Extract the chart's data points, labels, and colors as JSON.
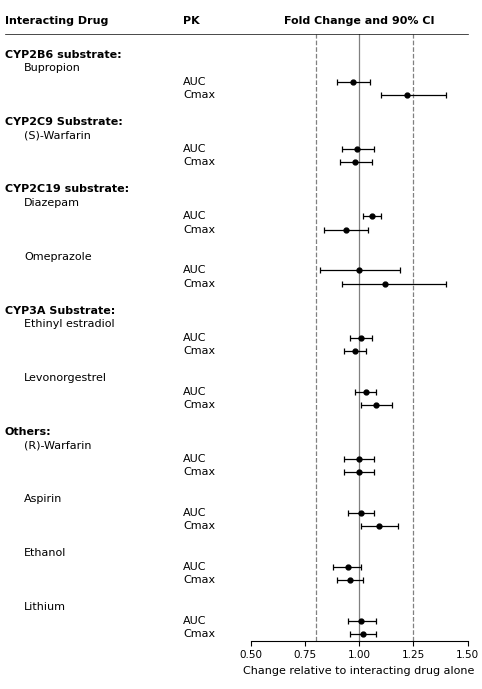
{
  "xlabel": "Change relative to interacting drug alone",
  "col1_header": "Interacting Drug",
  "col2_header": "PK",
  "col3_header": "Fold Change and 90% CI",
  "xlim": [
    0.5,
    1.5
  ],
  "xticks": [
    0.5,
    0.75,
    1.0,
    1.25,
    1.5
  ],
  "xticklabels": [
    "0.50",
    "0.75",
    "1.00",
    "1.25",
    "1.50"
  ],
  "ref_line": 1.0,
  "dashed_lines": [
    0.8,
    1.25
  ],
  "items": [
    {
      "type": "header_spacer"
    },
    {
      "type": "group",
      "text": "CYP2B6 substrate:"
    },
    {
      "type": "drug",
      "text": "Bupropion"
    },
    {
      "type": "pk",
      "pk": "AUC",
      "mean": 0.97,
      "lo": 0.9,
      "hi": 1.05
    },
    {
      "type": "pk",
      "pk": "Cmax",
      "mean": 1.22,
      "lo": 1.1,
      "hi": 1.4
    },
    {
      "type": "spacer"
    },
    {
      "type": "group",
      "text": "CYP2C9 Substrate:"
    },
    {
      "type": "drug",
      "text": "(S)-Warfarin"
    },
    {
      "type": "pk",
      "pk": "AUC",
      "mean": 0.99,
      "lo": 0.92,
      "hi": 1.07
    },
    {
      "type": "pk",
      "pk": "Cmax",
      "mean": 0.98,
      "lo": 0.91,
      "hi": 1.06
    },
    {
      "type": "spacer"
    },
    {
      "type": "group",
      "text": "CYP2C19 substrate:"
    },
    {
      "type": "drug",
      "text": "Diazepam"
    },
    {
      "type": "pk",
      "pk": "AUC",
      "mean": 1.06,
      "lo": 1.02,
      "hi": 1.1
    },
    {
      "type": "pk",
      "pk": "Cmax",
      "mean": 0.94,
      "lo": 0.84,
      "hi": 1.04
    },
    {
      "type": "spacer"
    },
    {
      "type": "drug",
      "text": "Omeprazole"
    },
    {
      "type": "pk",
      "pk": "AUC",
      "mean": 1.0,
      "lo": 0.82,
      "hi": 1.19
    },
    {
      "type": "pk",
      "pk": "Cmax",
      "mean": 1.12,
      "lo": 0.92,
      "hi": 1.4
    },
    {
      "type": "spacer"
    },
    {
      "type": "group",
      "text": "CYP3A Substrate:"
    },
    {
      "type": "drug",
      "text": "Ethinyl estradiol"
    },
    {
      "type": "pk",
      "pk": "AUC",
      "mean": 1.01,
      "lo": 0.96,
      "hi": 1.06
    },
    {
      "type": "pk",
      "pk": "Cmax",
      "mean": 0.98,
      "lo": 0.93,
      "hi": 1.03
    },
    {
      "type": "spacer"
    },
    {
      "type": "drug",
      "text": "Levonorgestrel"
    },
    {
      "type": "pk",
      "pk": "AUC",
      "mean": 1.03,
      "lo": 0.98,
      "hi": 1.08
    },
    {
      "type": "pk",
      "pk": "Cmax",
      "mean": 1.08,
      "lo": 1.01,
      "hi": 1.15
    },
    {
      "type": "spacer"
    },
    {
      "type": "group",
      "text": "Others:"
    },
    {
      "type": "drug",
      "text": "(R)-Warfarin"
    },
    {
      "type": "pk",
      "pk": "AUC",
      "mean": 1.0,
      "lo": 0.93,
      "hi": 1.07
    },
    {
      "type": "pk",
      "pk": "Cmax",
      "mean": 1.0,
      "lo": 0.93,
      "hi": 1.07
    },
    {
      "type": "spacer"
    },
    {
      "type": "drug",
      "text": "Aspirin"
    },
    {
      "type": "pk",
      "pk": "AUC",
      "mean": 1.01,
      "lo": 0.95,
      "hi": 1.07
    },
    {
      "type": "pk",
      "pk": "Cmax",
      "mean": 1.09,
      "lo": 1.01,
      "hi": 1.18
    },
    {
      "type": "spacer"
    },
    {
      "type": "drug",
      "text": "Ethanol"
    },
    {
      "type": "pk",
      "pk": "AUC",
      "mean": 0.95,
      "lo": 0.88,
      "hi": 1.01
    },
    {
      "type": "pk",
      "pk": "Cmax",
      "mean": 0.96,
      "lo": 0.9,
      "hi": 1.02
    },
    {
      "type": "spacer"
    },
    {
      "type": "drug",
      "text": "Lithium"
    },
    {
      "type": "pk",
      "pk": "AUC",
      "mean": 1.01,
      "lo": 0.95,
      "hi": 1.08
    },
    {
      "type": "pk",
      "pk": "Cmax",
      "mean": 1.02,
      "lo": 0.96,
      "hi": 1.08
    }
  ]
}
